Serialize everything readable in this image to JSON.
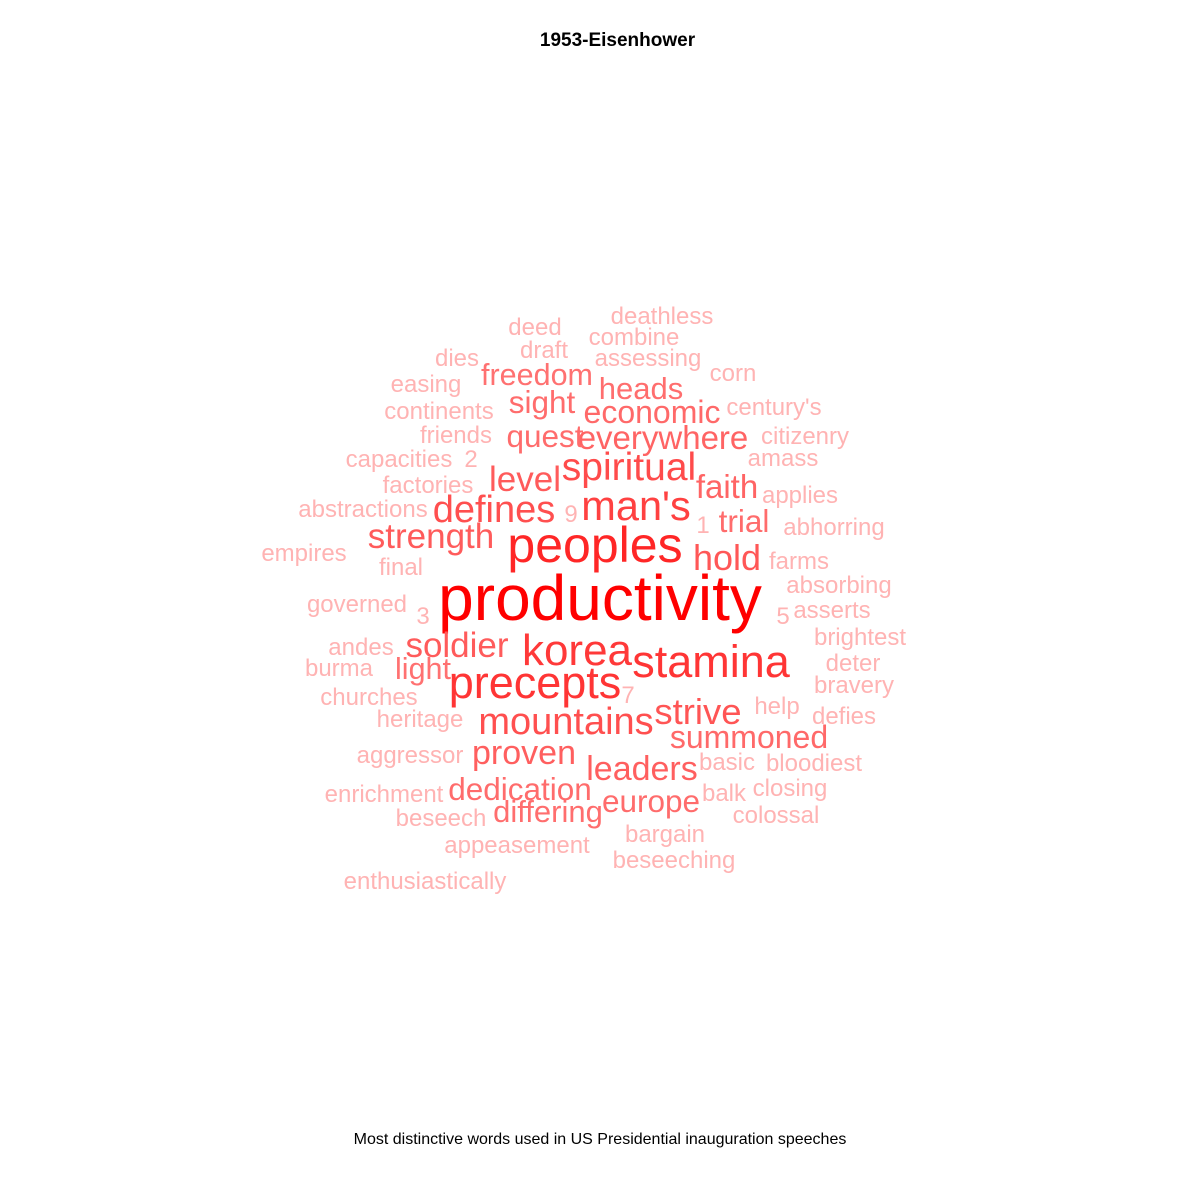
{
  "title": "1953-Eisenhower",
  "caption": "Most distinctive words used in US Presidential inauguration speeches",
  "chart_data": {
    "type": "wordcloud",
    "title": "1953-Eisenhower",
    "caption": "Most distinctive words used in US Presidential inauguration speeches",
    "color_scale": {
      "high": "#ff0000",
      "low": "#ffb3b3"
    },
    "words": [
      {
        "word": "productivity",
        "weight": 1.0
      },
      {
        "word": "peoples",
        "weight": 0.72
      },
      {
        "word": "stamina",
        "weight": 0.62
      },
      {
        "word": "precepts",
        "weight": 0.62
      },
      {
        "word": "korea",
        "weight": 0.6
      },
      {
        "word": "man's",
        "weight": 0.55
      },
      {
        "word": "spiritual",
        "weight": 0.5
      },
      {
        "word": "mountains",
        "weight": 0.48
      },
      {
        "word": "defines",
        "weight": 0.48
      },
      {
        "word": "strive",
        "weight": 0.45
      },
      {
        "word": "hold",
        "weight": 0.44
      },
      {
        "word": "strength",
        "weight": 0.42
      },
      {
        "word": "level",
        "weight": 0.42
      },
      {
        "word": "soldier",
        "weight": 0.42
      },
      {
        "word": "leaders",
        "weight": 0.4
      },
      {
        "word": "proven",
        "weight": 0.4
      },
      {
        "word": "faith",
        "weight": 0.38
      },
      {
        "word": "everywhere",
        "weight": 0.38
      },
      {
        "word": "economic",
        "weight": 0.36
      },
      {
        "word": "summoned",
        "weight": 0.36
      },
      {
        "word": "dedication",
        "weight": 0.35
      },
      {
        "word": "trial",
        "weight": 0.35
      },
      {
        "word": "quest",
        "weight": 0.35
      },
      {
        "word": "sight",
        "weight": 0.35
      },
      {
        "word": "europe",
        "weight": 0.35
      },
      {
        "word": "differing",
        "weight": 0.34
      },
      {
        "word": "heads",
        "weight": 0.34
      },
      {
        "word": "freedom",
        "weight": 0.33
      },
      {
        "word": "light",
        "weight": 0.33
      },
      {
        "word": "deathless",
        "weight": 0.2
      },
      {
        "word": "deed",
        "weight": 0.2
      },
      {
        "word": "combine",
        "weight": 0.2
      },
      {
        "word": "draft",
        "weight": 0.2
      },
      {
        "word": "dies",
        "weight": 0.2
      },
      {
        "word": "assessing",
        "weight": 0.2
      },
      {
        "word": "corn",
        "weight": 0.2
      },
      {
        "word": "easing",
        "weight": 0.2
      },
      {
        "word": "continents",
        "weight": 0.2
      },
      {
        "word": "century's",
        "weight": 0.2
      },
      {
        "word": "friends",
        "weight": 0.2
      },
      {
        "word": "citizenry",
        "weight": 0.2
      },
      {
        "word": "capacities",
        "weight": 0.2
      },
      {
        "word": "2",
        "weight": 0.2
      },
      {
        "word": "amass",
        "weight": 0.2
      },
      {
        "word": "factories",
        "weight": 0.2
      },
      {
        "word": "applies",
        "weight": 0.2
      },
      {
        "word": "abstractions",
        "weight": 0.2
      },
      {
        "word": "9",
        "weight": 0.2
      },
      {
        "word": "1",
        "weight": 0.2
      },
      {
        "word": "abhorring",
        "weight": 0.2
      },
      {
        "word": "empires",
        "weight": 0.2
      },
      {
        "word": "final",
        "weight": 0.2
      },
      {
        "word": "farms",
        "weight": 0.2
      },
      {
        "word": "absorbing",
        "weight": 0.2
      },
      {
        "word": "governed",
        "weight": 0.2
      },
      {
        "word": "3",
        "weight": 0.2
      },
      {
        "word": "5",
        "weight": 0.2
      },
      {
        "word": "asserts",
        "weight": 0.2
      },
      {
        "word": "brightest",
        "weight": 0.2
      },
      {
        "word": "andes",
        "weight": 0.2
      },
      {
        "word": "burma",
        "weight": 0.2
      },
      {
        "word": "deter",
        "weight": 0.2
      },
      {
        "word": "bravery",
        "weight": 0.2
      },
      {
        "word": "churches",
        "weight": 0.2
      },
      {
        "word": "7",
        "weight": 0.2
      },
      {
        "word": "heritage",
        "weight": 0.2
      },
      {
        "word": "help",
        "weight": 0.2
      },
      {
        "word": "defies",
        "weight": 0.2
      },
      {
        "word": "aggressor",
        "weight": 0.2
      },
      {
        "word": "basic",
        "weight": 0.2
      },
      {
        "word": "bloodiest",
        "weight": 0.2
      },
      {
        "word": "enrichment",
        "weight": 0.2
      },
      {
        "word": "balk",
        "weight": 0.2
      },
      {
        "word": "closing",
        "weight": 0.2
      },
      {
        "word": "beseech",
        "weight": 0.2
      },
      {
        "word": "colossal",
        "weight": 0.2
      },
      {
        "word": "bargain",
        "weight": 0.2
      },
      {
        "word": "appeasement",
        "weight": 0.2
      },
      {
        "word": "beseeching",
        "weight": 0.2
      },
      {
        "word": "enthusiastically",
        "weight": 0.2
      }
    ]
  }
}
